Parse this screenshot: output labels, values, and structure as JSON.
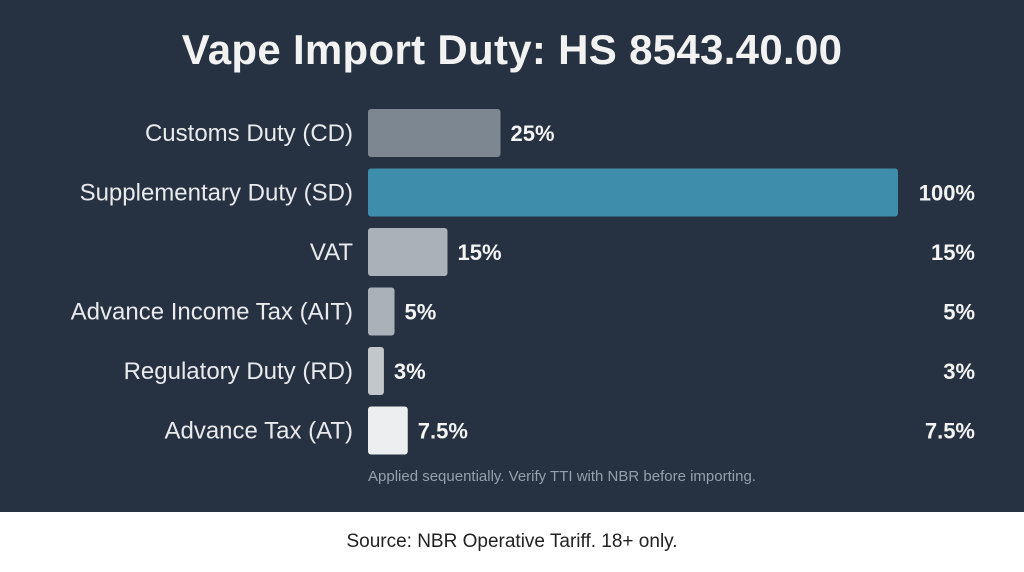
{
  "chart_data": {
    "type": "bar",
    "orientation": "horizontal",
    "title": "Vape Import Duty: HS 8543.40.00",
    "categories": [
      "Customs Duty (CD)",
      "Supplementary Duty (SD)",
      "VAT",
      "Advance Income Tax (AIT)",
      "Regulatory Duty (RD)",
      "Advance Tax (AT)"
    ],
    "values": [
      25,
      100,
      15,
      5,
      3,
      7.5
    ],
    "value_labels": [
      "25%",
      "100%",
      "15%",
      "5%",
      "3%",
      "7.5%"
    ],
    "right_labels": [
      "",
      "100%",
      "15%",
      "5%",
      "3%",
      "7.5%"
    ],
    "bar_colors": [
      "#7d8791",
      "#3d8dab",
      "#a9b1b9",
      "#a9b1b9",
      "#c2c7cc",
      "#eceef0"
    ],
    "xlim": [
      0,
      100
    ],
    "grid": false
  },
  "note": "Applied sequentially. Verify TTI with NBR before importing.",
  "footer": "Source: NBR Operative Tariff. 18+ only."
}
